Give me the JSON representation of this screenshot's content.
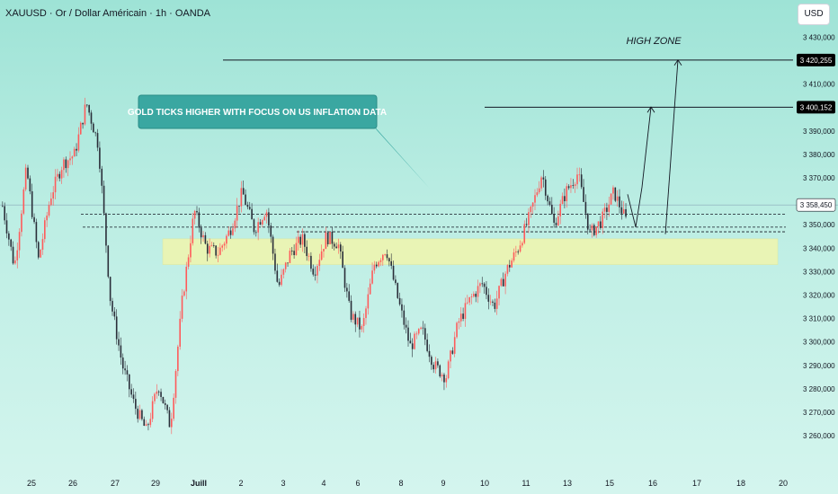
{
  "header": {
    "symbol_title": "XAUUSD · Or / Dollar Américain · 1h · OANDA",
    "currency": "USD"
  },
  "colors": {
    "up": "#ff5a5a",
    "down": "#2a2e39",
    "zone": "#eef5b0",
    "callout": "#3aa7a1",
    "price_label_bg": "#000000"
  },
  "chart_data": {
    "type": "candlestick",
    "symbol": "XAUUSD",
    "interval": "1h",
    "ylim": [
      3252,
      3434
    ],
    "y_ticks": [
      "3 260,000",
      "3 270,000",
      "3 280,000",
      "3 290,000",
      "3 300,000",
      "3 310,000",
      "3 320,000",
      "3 330,000",
      "3 340,000",
      "3 350,000",
      "3 360,000",
      "3 370,000",
      "3 380,000",
      "3 390,000",
      "3 410,000",
      "3 430,000"
    ],
    "x_ticks": [
      "25",
      "26",
      "27",
      "29",
      "Juill",
      "2",
      "3",
      "4",
      "6",
      "8",
      "9",
      "10",
      "11",
      "13",
      "15",
      "16",
      "17",
      "18",
      "20"
    ],
    "price_labels": [
      {
        "text": "3 420,255",
        "value": 3420.255
      },
      {
        "text": "3 400,152",
        "value": 3400.152
      },
      {
        "text": "3 358,450",
        "value": 3358.45
      }
    ],
    "support_zone": [
      3333,
      3344
    ],
    "dashed_levels": [
      3354.5,
      3349,
      3347
    ],
    "path_points": [
      3358,
      3332,
      3374,
      3335,
      3362,
      3376,
      3380,
      3402,
      3384,
      3318,
      3290,
      3273,
      3262,
      3282,
      3264,
      3318,
      3356,
      3340,
      3338,
      3348,
      3364,
      3348,
      3357,
      3323,
      3338,
      3344,
      3330,
      3345,
      3342,
      3312,
      3305,
      3333,
      3340,
      3318,
      3298,
      3305,
      3290,
      3285,
      3308,
      3318,
      3325,
      3315,
      3330,
      3340,
      3354,
      3372,
      3350,
      3364,
      3372,
      3346,
      3352,
      3364,
      3352
    ],
    "annotations": {
      "callout": "GOLD TICKS HIGHER WITH FOCUS ON US INFLATION DATA",
      "high_zone": "HIGH ZONE"
    }
  }
}
